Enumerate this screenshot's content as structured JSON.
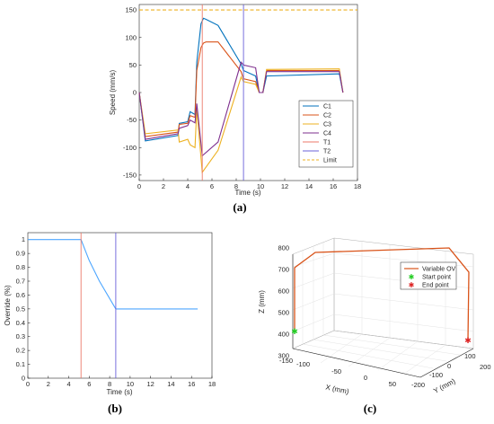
{
  "captions": {
    "a": "(a)",
    "b": "(b)",
    "c": "(c)"
  },
  "chart_data": [
    {
      "type": "line",
      "xlabel": "Time (s)",
      "ylabel": "Speed (mm/s)",
      "xlim": [
        0,
        18
      ],
      "ylim": [
        -160,
        160
      ],
      "xticks": [
        0,
        2,
        4,
        6,
        8,
        10,
        12,
        14,
        16,
        18
      ],
      "yticks": [
        150,
        100,
        50,
        0,
        -50,
        -100,
        -150
      ],
      "legend": "bottom-right",
      "grid": false,
      "series": [
        {
          "name": "C1",
          "color": "#0072bd",
          "style": "solid",
          "x": [
            0,
            0.5,
            3.2,
            3.3,
            4.0,
            4.2,
            4.6,
            4.75,
            5.1,
            5.3,
            5.5,
            6.5,
            8.4,
            8.6,
            9.6,
            9.9,
            10.2,
            10.5,
            16.5,
            16.8
          ],
          "y": [
            0,
            -88,
            -78,
            -56,
            -53,
            -35,
            -40,
            55,
            125,
            135,
            133,
            122,
            52,
            40,
            30,
            0,
            0,
            30,
            34,
            0
          ]
        },
        {
          "name": "C2",
          "color": "#d95319",
          "style": "solid",
          "x": [
            0,
            0.5,
            3.2,
            3.3,
            4.0,
            4.2,
            4.6,
            4.75,
            5.1,
            5.3,
            5.5,
            6.5,
            8.4,
            8.6,
            9.6,
            9.9,
            10.2,
            10.5,
            16.5,
            16.8
          ],
          "y": [
            0,
            -80,
            -72,
            -58,
            -56,
            -42,
            -45,
            40,
            82,
            90,
            92,
            92,
            38,
            25,
            20,
            0,
            0,
            40,
            40,
            0
          ]
        },
        {
          "name": "C3",
          "color": "#edb120",
          "style": "solid",
          "x": [
            0,
            0.5,
            3.2,
            3.3,
            4.0,
            4.2,
            4.6,
            4.75,
            5.2,
            6.5,
            8.4,
            8.6,
            9.6,
            9.9,
            10.2,
            10.5,
            16.5,
            16.8
          ],
          "y": [
            0,
            -75,
            -68,
            -90,
            -85,
            -95,
            -100,
            -30,
            -145,
            -105,
            28,
            20,
            15,
            0,
            0,
            42,
            43,
            0
          ]
        },
        {
          "name": "C4",
          "color": "#7e2f8e",
          "style": "solid",
          "x": [
            0,
            0.5,
            3.2,
            3.3,
            4.0,
            4.2,
            4.6,
            4.75,
            5.2,
            6.5,
            8.4,
            8.6,
            9.6,
            9.9,
            10.2,
            10.5,
            16.5,
            16.8
          ],
          "y": [
            0,
            -85,
            -75,
            -65,
            -60,
            -50,
            -55,
            -20,
            -115,
            -90,
            55,
            50,
            45,
            0,
            0,
            38,
            38,
            0
          ]
        },
        {
          "name": "T1",
          "color": "#ec7a6a",
          "style": "vline",
          "x": [
            5.2,
            5.2
          ],
          "y": [
            -160,
            160
          ]
        },
        {
          "name": "T2",
          "color": "#6a60d8",
          "style": "vline",
          "x": [
            8.6,
            8.6
          ],
          "y": [
            -160,
            160
          ]
        },
        {
          "name": "Limit",
          "color": "#edb120",
          "style": "dashed",
          "x": [
            0,
            18
          ],
          "y": [
            150,
            150
          ]
        }
      ]
    },
    {
      "type": "line",
      "xlabel": "Time (s)",
      "ylabel": "Override (%)",
      "xlim": [
        0,
        18
      ],
      "ylim": [
        0,
        1.05
      ],
      "xticks": [
        0,
        2,
        4,
        6,
        8,
        10,
        12,
        14,
        16,
        18
      ],
      "yticks": [
        1,
        0.9,
        0.8,
        0.7,
        0.6,
        0.5,
        0.4,
        0.3,
        0.2,
        0.1,
        0
      ],
      "grid": false,
      "series": [
        {
          "color": "#4da6ff",
          "style": "solid",
          "x": [
            0,
            5.2,
            6.0,
            7.0,
            8.6,
            16.6
          ],
          "y": [
            1,
            1,
            0.85,
            0.7,
            0.5,
            0.5
          ]
        },
        {
          "color": "#ec7a6a",
          "style": "vline",
          "x": [
            5.2,
            5.2
          ],
          "y": [
            0,
            1.05
          ]
        },
        {
          "color": "#6a60d8",
          "style": "vline",
          "x": [
            8.6,
            8.6
          ],
          "y": [
            0,
            1.05
          ]
        }
      ]
    },
    {
      "type": "line3d",
      "xlabel": "X (mm)",
      "ylabel": "Y (mm)",
      "zlabel": "Z (mm)",
      "xticks": [
        -150,
        -100,
        -50,
        0,
        50
      ],
      "yticks": [
        -200,
        -100,
        0,
        100,
        200
      ],
      "zticks": [
        300,
        400,
        500,
        600,
        700,
        800
      ],
      "legend": "top-right",
      "grid": true,
      "series": [
        {
          "name": "Variable OV",
          "color": "#d95319",
          "marker": "line"
        },
        {
          "name": "Start point",
          "color": "#22cc22",
          "marker": "star"
        },
        {
          "name": "End point",
          "color": "#dd2222",
          "marker": "star"
        }
      ]
    }
  ]
}
